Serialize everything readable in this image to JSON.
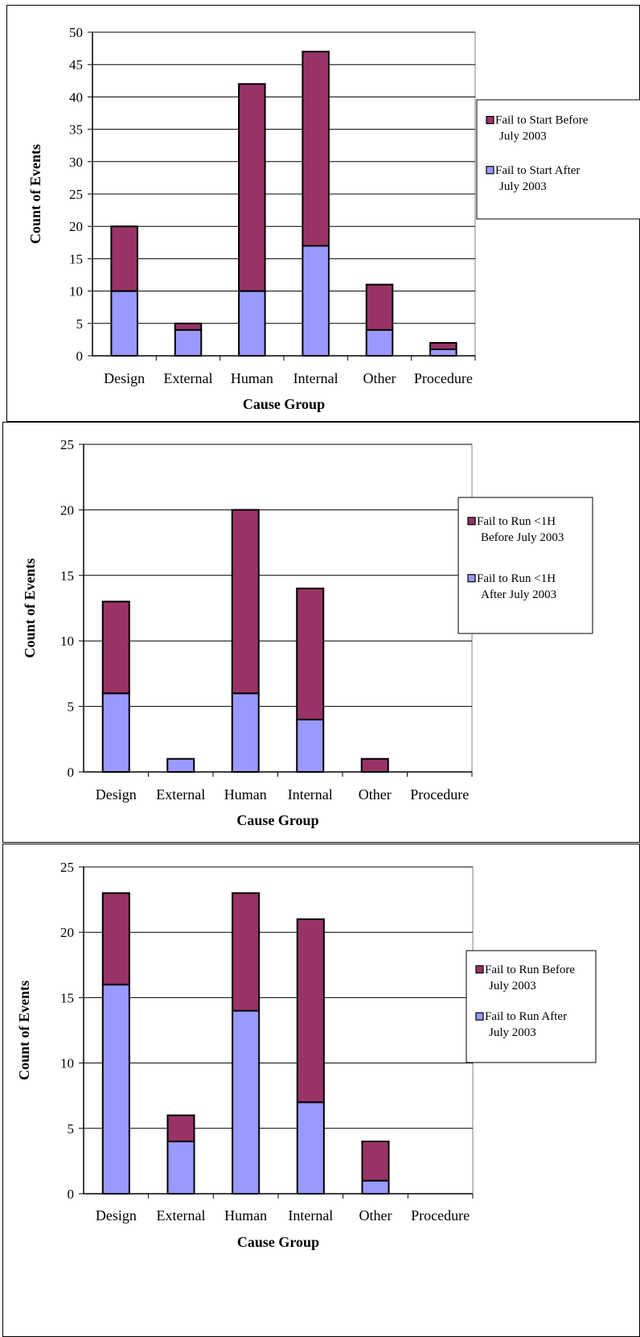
{
  "chart_data": [
    {
      "type": "bar",
      "stacked": true,
      "categories": [
        "Design",
        "External",
        "Human",
        "Internal",
        "Other",
        "Procedure"
      ],
      "xlabel": "Cause Group",
      "ylabel": "Count of Events",
      "ylim": [
        0,
        50
      ],
      "yticks": [
        0,
        5,
        10,
        15,
        20,
        25,
        30,
        35,
        40,
        45,
        50
      ],
      "grid": true,
      "legend_position": "right",
      "series": [
        {
          "name": "Fail to Start After July 2003",
          "legend_lines": [
            "Fail to Start After",
            "July 2003"
          ],
          "color": "#9999ff",
          "values": [
            10,
            4,
            10,
            17,
            4,
            1
          ]
        },
        {
          "name": "Fail to Start Before July 2003",
          "legend_lines": [
            "Fail to Start Before",
            "July 2003"
          ],
          "color": "#993366",
          "values": [
            10,
            1,
            32,
            30,
            7,
            1
          ]
        }
      ]
    },
    {
      "type": "bar",
      "stacked": true,
      "categories": [
        "Design",
        "External",
        "Human",
        "Internal",
        "Other",
        "Procedure"
      ],
      "xlabel": "Cause Group",
      "ylabel": "Count of Events",
      "ylim": [
        0,
        25
      ],
      "yticks": [
        0,
        5,
        10,
        15,
        20,
        25
      ],
      "grid": true,
      "legend_position": "right",
      "series": [
        {
          "name": "Fail to Run <1H After July 2003",
          "legend_lines": [
            "Fail to Run <1H",
            "After July 2003"
          ],
          "color": "#9999ff",
          "values": [
            6,
            1,
            6,
            4,
            0,
            0
          ]
        },
        {
          "name": "Fail to Run <1H Before July 2003",
          "legend_lines": [
            "Fail to Run <1H",
            "Before July 2003"
          ],
          "color": "#993366",
          "values": [
            7,
            0,
            14,
            10,
            1,
            0
          ]
        }
      ]
    },
    {
      "type": "bar",
      "stacked": true,
      "categories": [
        "Design",
        "External",
        "Human",
        "Internal",
        "Other",
        "Procedure"
      ],
      "xlabel": "Cause Group",
      "ylabel": "Count of Events",
      "ylim": [
        0,
        25
      ],
      "yticks": [
        0,
        5,
        10,
        15,
        20,
        25
      ],
      "grid": true,
      "legend_position": "right",
      "series": [
        {
          "name": "Fail to Run After July 2003",
          "legend_lines": [
            "Fail to Run After",
            "July 2003"
          ],
          "color": "#9999ff",
          "values": [
            16,
            4,
            14,
            7,
            1,
            0
          ]
        },
        {
          "name": "Fail to Run Before July 2003",
          "legend_lines": [
            "Fail to Run Before",
            "July 2003"
          ],
          "color": "#993366",
          "values": [
            7,
            2,
            9,
            14,
            3,
            0
          ]
        }
      ]
    }
  ]
}
